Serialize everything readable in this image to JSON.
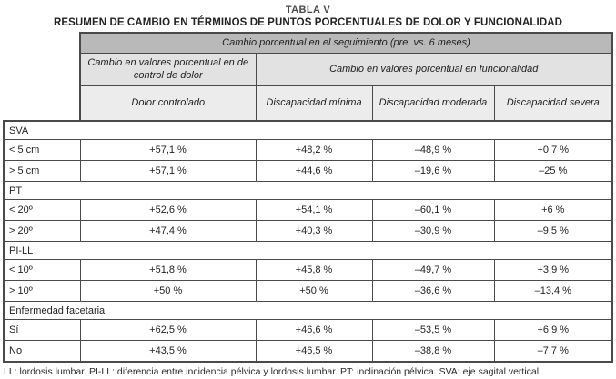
{
  "title": {
    "line1": "TABLA V",
    "line2": "RESUMEN DE CAMBIO EN TÉRMINOS DE PUNTOS PORCENTUALES DE DOLOR Y FUNCIONALIDAD"
  },
  "header": {
    "top_band": "Cambio porcentual en el seguimiento (pre. vs. 6 meses)",
    "group_left": "Cambio en valores porcentual en de control de dolor",
    "group_right": "Cambio en valores porcentual en  funcionalidad",
    "columns": [
      "Dolor controlado",
      "Discapacidad mínima",
      "Discapacidad moderada",
      "Discapacidad severa"
    ]
  },
  "sections": [
    {
      "label": "SVA",
      "rows": [
        {
          "label": "< 5 cm",
          "values": [
            "+57,1 %",
            "+48,2 %",
            "–48,9 %",
            "+0,7 %"
          ]
        },
        {
          "label": "> 5 cm",
          "values": [
            "+57,1 %",
            "+44,6 %",
            "–19,6 %",
            "–25 %"
          ]
        }
      ]
    },
    {
      "label": "PT",
      "rows": [
        {
          "label": "< 20º",
          "values": [
            "+52,6 %",
            "+54,1 %",
            "–60,1 %",
            "+6 %"
          ]
        },
        {
          "label": "> 20º",
          "values": [
            "+47,4 %",
            "+40,3 %",
            "–30,9 %",
            "–9,5 %"
          ]
        }
      ]
    },
    {
      "label": "PI-LL",
      "rows": [
        {
          "label": "< 10º",
          "values": [
            "+51,8 %",
            "+45,8 %",
            "–49,7 %",
            "+3,9 %"
          ]
        },
        {
          "label": "> 10º",
          "values": [
            "+50 %",
            "+50 %",
            "–36,6 %",
            "–13,4 %"
          ]
        }
      ]
    },
    {
      "label": "Enfermedad facetaria",
      "rows": [
        {
          "label": "Sí",
          "values": [
            "+62,5 %",
            "+46,6 %",
            "–53,5 %",
            "+6,9 %"
          ]
        },
        {
          "label": "No",
          "values": [
            "+43,5 %",
            "+46,5 %",
            "–38,8 %",
            "–7,7 %"
          ]
        }
      ]
    }
  ],
  "footnote": "LL: lordosis lumbar. PI-LL: diferencia entre incidencia pélvica y lordosis lumbar. PT: inclinación pélvica. SVA: eje sagital vertical.",
  "colors": {
    "header_dark": "#b9b9b9",
    "header_mid": "#e2e2e2",
    "header_light": "#ececec",
    "border": "#4a4a4a",
    "text": "#1f1f1f"
  }
}
